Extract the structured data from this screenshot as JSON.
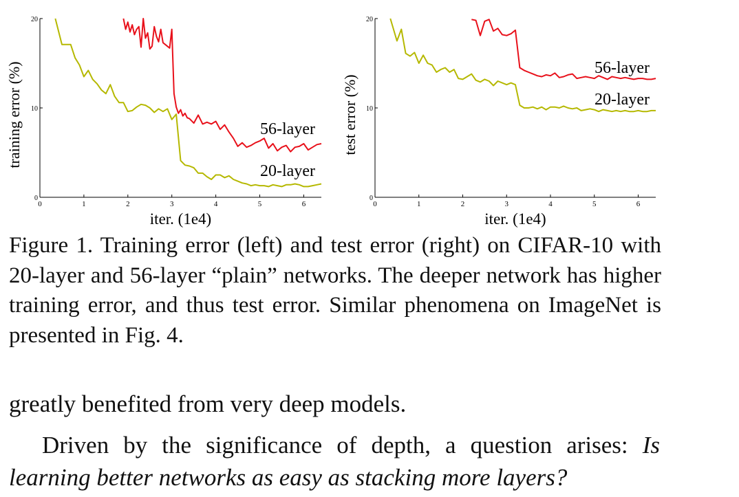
{
  "caption": {
    "text": "Figure 1. Training error (left) and test error (right) on CIFAR-10 with 20-layer and 56-layer “plain” networks. The deeper network has higher training error, and thus test error. Similar phenomena on ImageNet is presented in Fig. 4."
  },
  "body": {
    "paragraph1": "greatly benefited from very deep models.",
    "paragraph2_lead": "Driven by the significance of depth, a question arises: ",
    "paragraph2_italic": "Is learning better networks as easy as stacking more layers?"
  },
  "colors": {
    "layer56": "#e8101a",
    "layer20": "#b5b800",
    "axis": "#000000"
  },
  "chart_data": [
    {
      "type": "line",
      "xlabel": "iter. (1e4)",
      "ylabel": "training error (%)",
      "xlim": [
        0,
        6.4
      ],
      "ylim": [
        0,
        20
      ],
      "xticks": [
        "0",
        "1",
        "2",
        "3",
        "4",
        "5",
        "6"
      ],
      "yticks": [
        "0",
        "10",
        "20"
      ],
      "grid": false,
      "series": [
        {
          "name": "56-layer",
          "color": "#e8101a",
          "x": [
            1.9,
            1.95,
            2.0,
            2.05,
            2.1,
            2.15,
            2.2,
            2.25,
            2.3,
            2.35,
            2.4,
            2.45,
            2.5,
            2.55,
            2.6,
            2.65,
            2.7,
            2.75,
            2.8,
            2.85,
            2.9,
            2.95,
            3.0,
            3.05,
            3.1,
            3.15,
            3.2,
            3.25,
            3.3,
            3.35,
            3.4,
            3.5,
            3.6,
            3.7,
            3.8,
            3.9,
            4.0,
            4.1,
            4.2,
            4.3,
            4.4,
            4.5,
            4.6,
            4.7,
            4.8,
            4.9,
            5.0,
            5.1,
            5.2,
            5.3,
            5.4,
            5.5,
            5.6,
            5.7,
            5.8,
            5.9,
            6.0,
            6.1,
            6.2,
            6.3,
            6.4
          ],
          "y": [
            20.0,
            18.8,
            19.6,
            18.5,
            19.3,
            18.2,
            18.8,
            19.1,
            16.8,
            20.0,
            17.8,
            18.4,
            16.6,
            16.9,
            19.1,
            18.0,
            17.4,
            18.8,
            17.3,
            17.1,
            16.9,
            16.7,
            18.8,
            11.6,
            10.1,
            9.4,
            9.8,
            9.1,
            9.4,
            8.9,
            8.8,
            8.3,
            9.2,
            8.2,
            8.4,
            8.2,
            8.5,
            7.6,
            8.1,
            7.3,
            6.6,
            5.7,
            6.1,
            5.6,
            5.8,
            6.1,
            6.3,
            6.6,
            5.5,
            6.0,
            5.2,
            5.6,
            5.8,
            5.1,
            5.6,
            5.7,
            6.0,
            5.3,
            5.6,
            5.9,
            6.0
          ]
        },
        {
          "name": "20-layer",
          "color": "#b5b800",
          "x": [
            0.35,
            0.5,
            0.7,
            0.8,
            0.9,
            1.0,
            1.1,
            1.2,
            1.3,
            1.4,
            1.5,
            1.6,
            1.7,
            1.8,
            1.9,
            2.0,
            2.1,
            2.2,
            2.3,
            2.4,
            2.5,
            2.6,
            2.7,
            2.8,
            2.9,
            3.0,
            3.1,
            3.2,
            3.3,
            3.4,
            3.5,
            3.6,
            3.7,
            3.8,
            3.9,
            4.0,
            4.1,
            4.2,
            4.3,
            4.4,
            4.5,
            4.6,
            4.7,
            4.8,
            4.9,
            5.0,
            5.1,
            5.2,
            5.3,
            5.4,
            5.5,
            5.6,
            5.7,
            5.8,
            5.9,
            6.0,
            6.1,
            6.2,
            6.3,
            6.4
          ],
          "y": [
            20.0,
            17.1,
            17.1,
            15.6,
            14.8,
            13.5,
            14.2,
            13.2,
            12.7,
            12.0,
            11.6,
            12.6,
            11.3,
            10.6,
            10.6,
            9.6,
            9.7,
            10.1,
            10.4,
            10.3,
            10.0,
            9.5,
            9.9,
            9.6,
            9.9,
            8.7,
            9.3,
            4.1,
            3.6,
            3.5,
            3.3,
            2.7,
            2.7,
            2.3,
            2.0,
            2.5,
            2.5,
            2.2,
            2.4,
            2.0,
            1.8,
            1.6,
            1.5,
            1.3,
            1.4,
            1.3,
            1.3,
            1.2,
            1.4,
            1.3,
            1.2,
            1.4,
            1.4,
            1.5,
            1.4,
            1.2,
            1.2,
            1.3,
            1.4,
            1.5
          ]
        }
      ]
    },
    {
      "type": "line",
      "xlabel": "iter. (1e4)",
      "ylabel": "test error (%)",
      "xlim": [
        0,
        6.4
      ],
      "ylim": [
        0,
        20
      ],
      "xticks": [
        "0",
        "1",
        "2",
        "3",
        "4",
        "5",
        "6"
      ],
      "yticks": [
        "0",
        "10",
        "20"
      ],
      "grid": false,
      "series": [
        {
          "name": "56-layer",
          "color": "#e8101a",
          "x": [
            2.2,
            2.3,
            2.4,
            2.5,
            2.6,
            2.7,
            2.8,
            2.9,
            3.0,
            3.1,
            3.2,
            3.3,
            3.4,
            3.5,
            3.6,
            3.7,
            3.8,
            3.9,
            4.0,
            4.1,
            4.2,
            4.3,
            4.4,
            4.5,
            4.6,
            4.7,
            4.8,
            4.9,
            5.0,
            5.1,
            5.2,
            5.3,
            5.4,
            5.5,
            5.6,
            5.7,
            5.8,
            5.9,
            6.0,
            6.1,
            6.2,
            6.3,
            6.4
          ],
          "y": [
            19.9,
            19.8,
            18.1,
            19.7,
            19.9,
            18.6,
            18.9,
            18.2,
            18.1,
            18.3,
            18.7,
            14.5,
            14.2,
            14.0,
            13.8,
            13.6,
            13.5,
            13.7,
            13.6,
            13.9,
            13.4,
            13.5,
            13.7,
            13.8,
            13.3,
            13.4,
            13.5,
            13.4,
            13.3,
            13.6,
            13.4,
            13.2,
            13.5,
            13.4,
            13.3,
            13.4,
            13.3,
            13.2,
            13.3,
            13.3,
            13.2,
            13.2,
            13.3
          ]
        },
        {
          "name": "20-layer",
          "color": "#b5b800",
          "x": [
            0.35,
            0.5,
            0.6,
            0.7,
            0.8,
            0.9,
            1.0,
            1.1,
            1.2,
            1.3,
            1.4,
            1.5,
            1.6,
            1.7,
            1.8,
            1.9,
            2.0,
            2.1,
            2.2,
            2.3,
            2.4,
            2.5,
            2.6,
            2.7,
            2.8,
            2.9,
            3.0,
            3.1,
            3.2,
            3.3,
            3.4,
            3.5,
            3.6,
            3.7,
            3.8,
            3.9,
            4.0,
            4.1,
            4.2,
            4.3,
            4.4,
            4.5,
            4.6,
            4.7,
            4.8,
            4.9,
            5.0,
            5.1,
            5.2,
            5.3,
            5.4,
            5.5,
            5.6,
            5.7,
            5.8,
            5.9,
            6.0,
            6.1,
            6.2,
            6.3,
            6.4
          ],
          "y": [
            20.0,
            17.5,
            18.8,
            16.1,
            15.8,
            16.2,
            15.0,
            15.9,
            15.0,
            14.8,
            14.0,
            14.3,
            14.5,
            14.0,
            14.3,
            13.3,
            13.2,
            13.5,
            13.8,
            13.1,
            12.9,
            13.2,
            13.0,
            12.5,
            13.0,
            12.8,
            12.6,
            12.8,
            12.6,
            10.3,
            10.0,
            10.0,
            10.1,
            9.9,
            10.1,
            9.8,
            10.1,
            10.1,
            10.0,
            10.2,
            10.0,
            9.9,
            10.0,
            9.7,
            9.8,
            9.9,
            9.8,
            9.6,
            9.8,
            9.7,
            9.6,
            9.7,
            9.6,
            9.7,
            9.6,
            9.6,
            9.7,
            9.6,
            9.6,
            9.7,
            9.7
          ]
        }
      ]
    }
  ]
}
